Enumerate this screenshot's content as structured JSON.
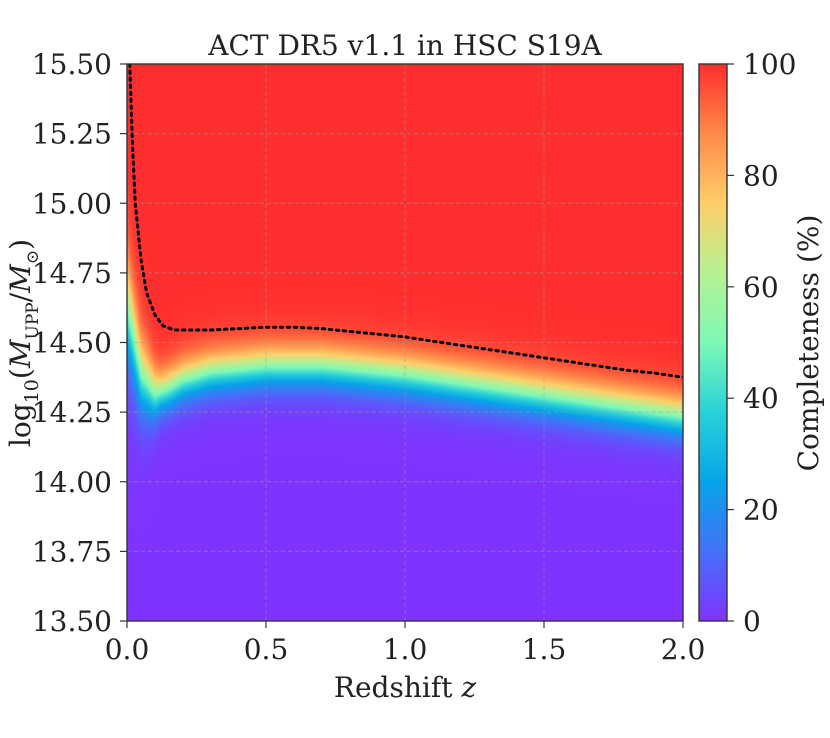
{
  "chart_data": {
    "type": "heatmap",
    "title": "ACT DR5 v1.1 in HSC S19A",
    "xlabel": "Redshift z",
    "ylabel": "log10(M_UPP/M_sun)",
    "xlim": [
      0.0,
      2.0
    ],
    "ylim": [
      13.5,
      15.5
    ],
    "x_ticks": [
      "0.0",
      "0.5",
      "1.0",
      "1.5",
      "2.0"
    ],
    "x_tick_values": [
      0.0,
      0.5,
      1.0,
      1.5,
      2.0
    ],
    "y_ticks": [
      "13.50",
      "13.75",
      "14.00",
      "14.25",
      "14.50",
      "14.75",
      "15.00",
      "15.25",
      "15.50"
    ],
    "y_tick_values": [
      13.5,
      13.75,
      14.0,
      14.25,
      14.5,
      14.75,
      15.0,
      15.25,
      15.5
    ],
    "grid": true,
    "colorbar": {
      "label": "Completeness (%)",
      "range": [
        0,
        100
      ],
      "ticks": [
        "0",
        "20",
        "40",
        "60",
        "80",
        "100"
      ],
      "tick_values": [
        0,
        20,
        40,
        60,
        80,
        100
      ],
      "colormap": "rainbow"
    },
    "completeness_50_curve": {
      "z": [
        0.0,
        0.05,
        0.1,
        0.15,
        0.2,
        0.3,
        0.4,
        0.5,
        0.6,
        0.7,
        0.8,
        0.9,
        1.0,
        1.2,
        1.4,
        1.6,
        1.8,
        2.0
      ],
      "logM": [
        14.62,
        14.38,
        14.31,
        14.33,
        14.36,
        14.39,
        14.4,
        14.41,
        14.41,
        14.41,
        14.4,
        14.39,
        14.38,
        14.35,
        14.32,
        14.29,
        14.26,
        14.23
      ]
    },
    "completeness_90_curve": {
      "style": "dotted",
      "color": "#000000",
      "z": [
        0.01,
        0.02,
        0.03,
        0.05,
        0.07,
        0.1,
        0.13,
        0.17,
        0.2,
        0.3,
        0.4,
        0.5,
        0.6,
        0.7,
        0.8,
        0.9,
        1.0,
        1.1,
        1.2,
        1.3,
        1.4,
        1.5,
        1.6,
        1.7,
        1.8,
        1.9,
        2.0
      ],
      "logM": [
        15.5,
        15.2,
        15.0,
        14.8,
        14.68,
        14.6,
        14.56,
        14.545,
        14.545,
        14.545,
        14.55,
        14.555,
        14.555,
        14.55,
        14.54,
        14.53,
        14.52,
        14.505,
        14.49,
        14.475,
        14.46,
        14.445,
        14.43,
        14.415,
        14.4,
        14.39,
        14.375
      ]
    },
    "transition_width_dex": 0.045
  }
}
